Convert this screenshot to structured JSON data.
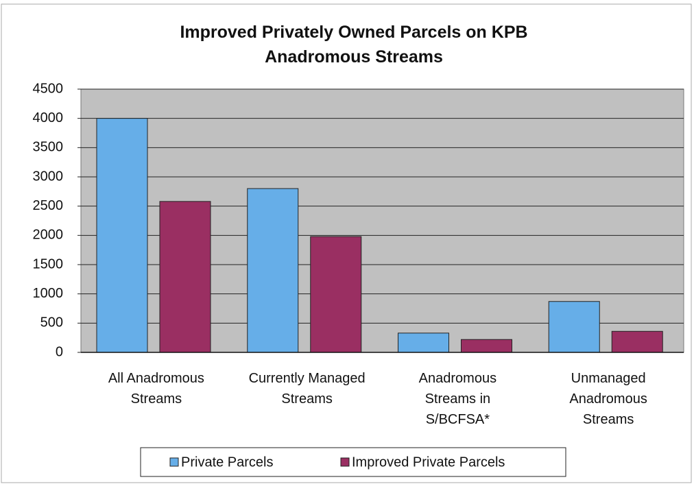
{
  "chart_data": {
    "type": "bar",
    "title": "Improved Privately Owned Parcels on KPB\nAnadromous Streams",
    "categories": [
      "All Anadromous\nStreams",
      "Currently Managed\nStreams",
      "Anadromous\nStreams in\nS/BCFSA*",
      "Unmanaged\nAnadromous\nStreams"
    ],
    "series": [
      {
        "name": "Private Parcels",
        "color": "#66aee8",
        "values": [
          4000,
          2800,
          330,
          870
        ]
      },
      {
        "name": "Improved Private Parcels",
        "color": "#9a2f62",
        "values": [
          2580,
          1980,
          220,
          360
        ]
      }
    ],
    "ylim": [
      0,
      4500
    ],
    "yticks": [
      0,
      500,
      1000,
      1500,
      2000,
      2500,
      3000,
      3500,
      4000,
      4500
    ],
    "grid": true,
    "legend": "bottom"
  }
}
